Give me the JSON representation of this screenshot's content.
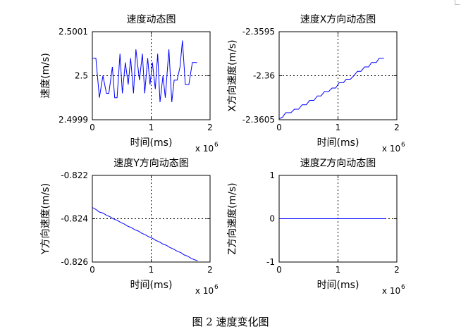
{
  "caption": "图 2  速度变化图",
  "chart_data": [
    {
      "type": "line",
      "title": "速度动态图",
      "xlabel": "时间(ms)",
      "ylabel": "速度(m/s)",
      "x_multiplier": "x 10",
      "x_multiplier_exp": "6",
      "xlim": [
        0,
        2000000
      ],
      "ylim": [
        2.4999,
        2.5001
      ],
      "xticks": [
        0,
        1000000,
        2000000
      ],
      "xtick_labels": [
        "0",
        "1",
        "2"
      ],
      "yticks": [
        2.4999,
        2.5,
        2.5001
      ],
      "ytick_labels": [
        "2.4999",
        "2.5",
        "2.5001"
      ],
      "grid": "dotted at center",
      "color": "#0000ff",
      "x": [
        0,
        60000,
        120000,
        180000,
        240000,
        280000,
        340000,
        380000,
        420000,
        470000,
        510000,
        560000,
        610000,
        650000,
        700000,
        740000,
        800000,
        850000,
        890000,
        940000,
        980000,
        1020000,
        1070000,
        1110000,
        1150000,
        1200000,
        1240000,
        1300000,
        1350000,
        1390000,
        1440000,
        1490000,
        1530000,
        1580000,
        1640000,
        1700000,
        1780000
      ],
      "y": [
        2.50004,
        2.50004,
        2.49995,
        2.5,
        2.49996,
        2.49996,
        2.50002,
        2.49995,
        2.49995,
        2.50005,
        2.49996,
        2.50003,
        2.49998,
        2.50004,
        2.49996,
        2.50006,
        2.49999,
        2.50005,
        2.49996,
        2.50004,
        2.49998,
        2.50003,
        2.49997,
        2.50005,
        2.49994,
        2.5,
        2.49995,
        2.50006,
        2.49994,
        2.49999,
        2.49999,
        2.50002,
        2.50008,
        2.49998,
        2.49998,
        2.50003,
        2.50003
      ]
    },
    {
      "type": "line",
      "title": "速度X方向动态图",
      "xlabel": "时间(ms)",
      "ylabel": "X方向速度(m/s)",
      "x_multiplier": "x 10",
      "x_multiplier_exp": "6",
      "xlim": [
        0,
        2000000
      ],
      "ylim": [
        -2.3605,
        -2.3595
      ],
      "xticks": [
        0,
        1000000,
        2000000
      ],
      "xtick_labels": [
        "0",
        "1",
        "2"
      ],
      "yticks": [
        -2.3605,
        -2.36,
        -2.3595
      ],
      "ytick_labels": [
        "-2.3605",
        "-2.36",
        "-2.3595"
      ],
      "grid": "dotted at center",
      "color": "#0000ff",
      "x": [
        0,
        60000,
        110000,
        200000,
        260000,
        330000,
        390000,
        460000,
        520000,
        590000,
        650000,
        710000,
        770000,
        840000,
        900000,
        960000,
        1020000,
        1090000,
        1140000,
        1210000,
        1270000,
        1330000,
        1390000,
        1450000,
        1520000,
        1570000,
        1650000,
        1700000,
        1780000
      ],
      "y": [
        -2.36049,
        -2.36047,
        -2.36042,
        -2.36042,
        -2.36038,
        -2.36038,
        -2.36033,
        -2.36033,
        -2.36028,
        -2.36028,
        -2.36023,
        -2.36023,
        -2.36018,
        -2.36018,
        -2.36014,
        -2.36014,
        -2.36008,
        -2.36008,
        -2.36004,
        -2.36004,
        -2.36,
        -2.35995,
        -2.35995,
        -2.3599,
        -2.3599,
        -2.35985,
        -2.35985,
        -2.3598,
        -2.3598
      ]
    },
    {
      "type": "line",
      "title": "速度Y方向动态图",
      "xlabel": "时间(ms)",
      "ylabel": "Y方向速度(m/s)",
      "x_multiplier": "x 10",
      "x_multiplier_exp": "6",
      "xlim": [
        0,
        2000000
      ],
      "ylim": [
        -0.826,
        -0.822
      ],
      "xticks": [
        0,
        1000000,
        2000000
      ],
      "xtick_labels": [
        "0",
        "1",
        "2"
      ],
      "yticks": [
        -0.826,
        -0.824,
        -0.822
      ],
      "ytick_labels": [
        "-0.826",
        "-0.824",
        "-0.822"
      ],
      "grid": "dotted at center",
      "color": "#0000ff",
      "x": [
        0,
        60000,
        120000,
        180000,
        240000,
        300000,
        360000,
        420000,
        480000,
        540000,
        600000,
        660000,
        720000,
        780000,
        840000,
        900000,
        960000,
        1020000,
        1080000,
        1140000,
        1200000,
        1260000,
        1320000,
        1380000,
        1440000,
        1500000,
        1560000,
        1620000,
        1680000,
        1740000,
        1790000
      ],
      "y": [
        -0.82348,
        -0.82357,
        -0.82369,
        -0.82374,
        -0.82384,
        -0.82391,
        -0.82401,
        -0.82407,
        -0.82417,
        -0.82424,
        -0.82434,
        -0.82441,
        -0.8245,
        -0.82457,
        -0.82467,
        -0.82474,
        -0.82484,
        -0.8249,
        -0.825,
        -0.82507,
        -0.82517,
        -0.82523,
        -0.82533,
        -0.8254,
        -0.8255,
        -0.82556,
        -0.82567,
        -0.82573,
        -0.82583,
        -0.8259,
        -0.82594
      ]
    },
    {
      "type": "line",
      "title": "速度Z方向动态图",
      "xlabel": "时间(ms)",
      "ylabel": "Z方向速度(m/s)",
      "x_multiplier": "x 10",
      "x_multiplier_exp": "6",
      "xlim": [
        0,
        2000000
      ],
      "ylim": [
        -1,
        1
      ],
      "xticks": [
        0,
        1000000,
        2000000
      ],
      "xtick_labels": [
        "0",
        "1",
        "2"
      ],
      "yticks": [
        -1,
        0,
        1
      ],
      "ytick_labels": [
        "-1",
        "0",
        "1"
      ],
      "grid": "dotted at center",
      "color": "#0000ff",
      "x": [
        0,
        1800000
      ],
      "y": [
        0,
        0
      ]
    }
  ]
}
